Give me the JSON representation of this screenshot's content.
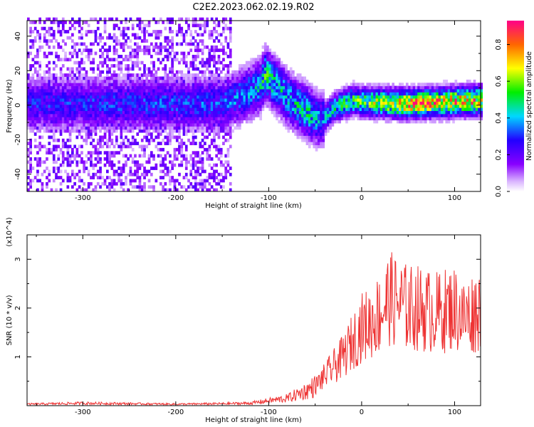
{
  "title": "C2E2.2023.062.02.19.R02",
  "chart_data": [
    {
      "type": "heatmap",
      "xlabel": "Height of straight line (km)",
      "ylabel": "Frequency (Hz)",
      "xlim": [
        -360,
        128
      ],
      "ylim": [
        -50,
        49
      ],
      "xticks": [
        -300,
        -200,
        -100,
        0,
        100
      ],
      "yticks": [
        -40,
        -20,
        0,
        20,
        40
      ],
      "colorbar": {
        "label": "Normalized spectral amplitude",
        "range": [
          0.0,
          0.93
        ],
        "ticks": [
          "0.0",
          "0.2",
          "0.4",
          "0.6",
          "0.8"
        ]
      },
      "ridge": {
        "x": [
          -360,
          -150,
          -110,
          -105,
          -95,
          -80,
          -60,
          -45,
          -30,
          -10,
          0,
          50,
          128
        ],
        "frequency": [
          0,
          0,
          10,
          17,
          12,
          3,
          -5,
          -10,
          -2,
          2,
          1,
          0,
          2
        ],
        "peak_amplitude": [
          0.3,
          0.35,
          0.45,
          0.55,
          0.5,
          0.45,
          0.5,
          0.4,
          0.5,
          0.6,
          0.6,
          0.85,
          0.8
        ]
      },
      "grid": false
    },
    {
      "type": "line",
      "xlabel": "Height of straight line (km)",
      "ylabel": "SNR (10 * v/v)",
      "y_multiplier": "(x10^4)",
      "xlim": [
        -360,
        128
      ],
      "ylim": [
        0,
        3.5
      ],
      "xticks": [
        -300,
        -200,
        -100,
        0,
        100
      ],
      "yticks": [
        1,
        2,
        3
      ],
      "series": [
        {
          "color": "#ee3333",
          "x": [
            -360,
            -300,
            -200,
            -150,
            -120,
            -100,
            -80,
            -60,
            -50,
            -40,
            -30,
            -20,
            -10,
            0,
            10,
            20,
            30,
            40,
            50,
            60,
            80,
            100,
            110,
            128
          ],
          "values": [
            0.03,
            0.05,
            0.03,
            0.04,
            0.05,
            0.1,
            0.15,
            0.3,
            0.4,
            0.6,
            0.8,
            1.0,
            1.3,
            1.6,
            1.7,
            1.9,
            2.2,
            2.1,
            2.0,
            2.0,
            1.9,
            2.0,
            1.8,
            2.0
          ]
        }
      ],
      "grid": false
    }
  ]
}
